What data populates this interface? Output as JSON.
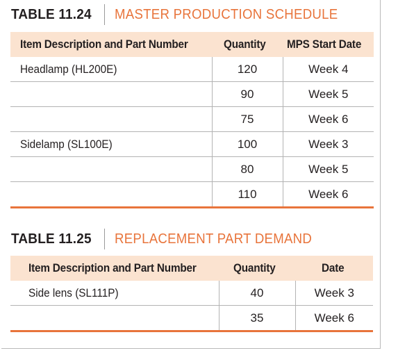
{
  "table1": {
    "number": "TABLE 11.24",
    "title": "MASTER PRODUCTION SCHEDULE",
    "headers": [
      "Item Description and Part Number",
      "Quantity",
      "MPS Start Date"
    ],
    "rows": [
      [
        "Headlamp (HL200E)",
        "120",
        "Week 4"
      ],
      [
        "",
        "90",
        "Week 5"
      ],
      [
        "",
        "75",
        "Week 6"
      ],
      [
        "Sidelamp (SL100E)",
        "100",
        "Week 3"
      ],
      [
        "",
        "80",
        "Week 5"
      ],
      [
        "",
        "110",
        "Week 6"
      ]
    ]
  },
  "table2": {
    "number": "TABLE 11.25",
    "title": "REPLACEMENT PART DEMAND",
    "headers": [
      "Item Description and Part Number",
      "Quantity",
      "Date"
    ],
    "rows": [
      [
        "Side lens (SL111P)",
        "40",
        "Week 3"
      ],
      [
        "",
        "35",
        "Week 6"
      ]
    ]
  },
  "colors": {
    "accent": "#e8743b",
    "header_fill": "#fbe3d0",
    "rule": "#b3b3b3"
  }
}
